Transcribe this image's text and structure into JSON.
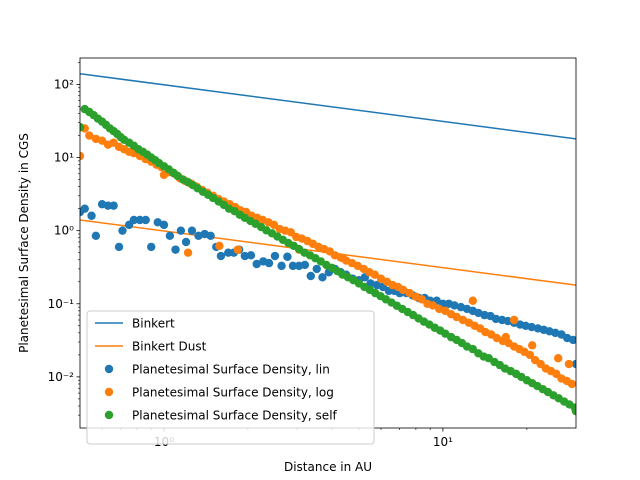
{
  "chart_data": {
    "type": "scatter",
    "title": "",
    "xlabel": "Distance in AU",
    "ylabel": "Planetesimal Surface Density in CGS",
    "xscale": "log",
    "yscale": "log",
    "xlim": [
      0.5,
      30
    ],
    "ylim": [
      0.002,
      230
    ],
    "grid": false,
    "legend_position": "lower-left",
    "x_ticks": [
      {
        "value": 1,
        "label": "10⁰"
      },
      {
        "value": 10,
        "label": "10¹"
      }
    ],
    "y_ticks": [
      {
        "value": 0.01,
        "label": "10⁻²"
      },
      {
        "value": 0.1,
        "label": "10⁻¹"
      },
      {
        "value": 1,
        "label": "10⁰"
      },
      {
        "value": 10,
        "label": "10¹"
      },
      {
        "value": 100,
        "label": "10²"
      }
    ],
    "series": [
      {
        "name": "Binkert",
        "kind": "line",
        "color": "#1f77b4",
        "points": [
          [
            0.5,
            140
          ],
          [
            30,
            18
          ]
        ]
      },
      {
        "name": "Binkert Dust",
        "kind": "line",
        "color": "#ff7f0e",
        "points": [
          [
            0.5,
            1.4
          ],
          [
            30,
            0.18
          ]
        ]
      },
      {
        "name": "Planetesimal Surface Density, lin",
        "kind": "scatter",
        "color": "#1f77b4",
        "points": [
          [
            0.5,
            1.8
          ],
          [
            0.52,
            2.0
          ],
          [
            0.55,
            1.6
          ],
          [
            0.57,
            0.85
          ],
          [
            0.6,
            2.3
          ],
          [
            0.63,
            2.2
          ],
          [
            0.66,
            2.2
          ],
          [
            0.69,
            0.6
          ],
          [
            0.71,
            1.0
          ],
          [
            0.75,
            1.2
          ],
          [
            0.78,
            1.4
          ],
          [
            0.82,
            1.4
          ],
          [
            0.86,
            1.4
          ],
          [
            0.9,
            0.6
          ],
          [
            0.95,
            1.3
          ],
          [
            1.0,
            1.2
          ],
          [
            1.05,
            0.85
          ],
          [
            1.1,
            0.55
          ],
          [
            1.15,
            1.0
          ],
          [
            1.2,
            0.7
          ],
          [
            1.26,
            1.0
          ],
          [
            1.33,
            0.85
          ],
          [
            1.4,
            0.9
          ],
          [
            1.47,
            0.85
          ],
          [
            1.54,
            0.6
          ],
          [
            1.6,
            0.45
          ],
          [
            1.7,
            0.5
          ],
          [
            1.78,
            0.5
          ],
          [
            1.86,
            0.55
          ],
          [
            1.95,
            0.45
          ],
          [
            2.05,
            0.46
          ],
          [
            2.15,
            0.35
          ],
          [
            2.27,
            0.38
          ],
          [
            2.38,
            0.36
          ],
          [
            2.5,
            0.45
          ],
          [
            2.64,
            0.33
          ],
          [
            2.77,
            0.44
          ],
          [
            2.9,
            0.33
          ],
          [
            3.05,
            0.33
          ],
          [
            3.2,
            0.34
          ],
          [
            3.36,
            0.24
          ],
          [
            3.53,
            0.3
          ],
          [
            3.7,
            0.23
          ],
          [
            3.9,
            0.27
          ],
          [
            4.1,
            0.3
          ],
          [
            4.3,
            0.27
          ],
          [
            4.5,
            0.25
          ],
          [
            4.75,
            0.22
          ],
          [
            5.0,
            0.21
          ],
          [
            5.25,
            0.23
          ],
          [
            5.5,
            0.19
          ],
          [
            5.8,
            0.18
          ],
          [
            6.1,
            0.17
          ],
          [
            6.4,
            0.15
          ],
          [
            6.7,
            0.15
          ],
          [
            7.0,
            0.14
          ],
          [
            7.4,
            0.14
          ],
          [
            7.8,
            0.13
          ],
          [
            8.2,
            0.12
          ],
          [
            8.6,
            0.12
          ],
          [
            9.0,
            0.11
          ],
          [
            9.5,
            0.11
          ],
          [
            10.0,
            0.1
          ],
          [
            10.5,
            0.1
          ],
          [
            11.0,
            0.095
          ],
          [
            11.6,
            0.09
          ],
          [
            12.2,
            0.085
          ],
          [
            12.8,
            0.08
          ],
          [
            13.4,
            0.075
          ],
          [
            14.1,
            0.07
          ],
          [
            14.8,
            0.068
          ],
          [
            15.5,
            0.062
          ],
          [
            16.3,
            0.06
          ],
          [
            17.1,
            0.058
          ],
          [
            18.0,
            0.055
          ],
          [
            18.9,
            0.052
          ],
          [
            19.8,
            0.05
          ],
          [
            20.8,
            0.048
          ],
          [
            21.9,
            0.046
          ],
          [
            23.0,
            0.044
          ],
          [
            24.1,
            0.042
          ],
          [
            25.3,
            0.04
          ],
          [
            26.6,
            0.038
          ],
          [
            27.9,
            0.034
          ],
          [
            29.3,
            0.032
          ],
          [
            30.0,
            0.015
          ]
        ]
      },
      {
        "name": "Planetesimal Surface Density, log",
        "kind": "scatter",
        "color": "#ff7f0e",
        "points": [
          [
            0.5,
            10.5
          ],
          [
            0.52,
            25
          ],
          [
            0.54,
            20
          ],
          [
            0.57,
            18
          ],
          [
            0.6,
            17
          ],
          [
            0.63,
            15
          ],
          [
            0.66,
            16
          ],
          [
            0.69,
            14
          ],
          [
            0.72,
            13
          ],
          [
            0.75,
            12
          ],
          [
            0.78,
            11.5
          ],
          [
            0.82,
            10.5
          ],
          [
            0.86,
            9.5
          ],
          [
            0.9,
            8.8
          ],
          [
            0.94,
            8.0
          ],
          [
            0.98,
            7.4
          ],
          [
            1.0,
            5.8
          ],
          [
            1.04,
            6.3
          ],
          [
            1.09,
            6.0
          ],
          [
            1.14,
            5.2
          ],
          [
            1.19,
            4.8
          ],
          [
            1.25,
            4.4
          ],
          [
            1.31,
            4.0
          ],
          [
            1.37,
            3.6
          ],
          [
            1.43,
            3.3
          ],
          [
            1.5,
            3.0
          ],
          [
            1.57,
            2.7
          ],
          [
            1.64,
            2.5
          ],
          [
            1.72,
            2.3
          ],
          [
            1.8,
            2.1
          ],
          [
            1.88,
            1.9
          ],
          [
            1.97,
            1.8
          ],
          [
            2.06,
            1.6
          ],
          [
            2.16,
            1.5
          ],
          [
            2.26,
            1.4
          ],
          [
            2.37,
            1.3
          ],
          [
            2.48,
            1.2
          ],
          [
            2.6,
            1.05
          ],
          [
            2.72,
            1.0
          ],
          [
            2.85,
            0.95
          ],
          [
            2.98,
            0.82
          ],
          [
            3.12,
            0.78
          ],
          [
            3.27,
            0.72
          ],
          [
            3.42,
            0.66
          ],
          [
            3.58,
            0.6
          ],
          [
            3.75,
            0.56
          ],
          [
            3.93,
            0.52
          ],
          [
            4.1,
            0.46
          ],
          [
            4.3,
            0.43
          ],
          [
            4.5,
            0.39
          ],
          [
            4.72,
            0.36
          ],
          [
            4.95,
            0.33
          ],
          [
            5.2,
            0.3
          ],
          [
            5.45,
            0.27
          ],
          [
            5.7,
            0.25
          ],
          [
            6.0,
            0.22
          ],
          [
            6.3,
            0.2
          ],
          [
            6.6,
            0.18
          ],
          [
            6.9,
            0.17
          ],
          [
            7.2,
            0.155
          ],
          [
            7.6,
            0.14
          ],
          [
            8.0,
            0.125
          ],
          [
            8.4,
            0.115
          ],
          [
            8.8,
            0.1
          ],
          [
            9.2,
            0.095
          ],
          [
            9.7,
            0.085
          ],
          [
            10.2,
            0.08
          ],
          [
            10.7,
            0.072
          ],
          [
            11.2,
            0.066
          ],
          [
            11.8,
            0.06
          ],
          [
            12.4,
            0.055
          ],
          [
            13.0,
            0.05
          ],
          [
            13.6,
            0.046
          ],
          [
            14.2,
            0.041
          ],
          [
            14.9,
            0.038
          ],
          [
            15.6,
            0.034
          ],
          [
            16.4,
            0.031
          ],
          [
            17.2,
            0.029
          ],
          [
            18.0,
            0.026
          ],
          [
            18.8,
            0.024
          ],
          [
            19.6,
            0.022
          ],
          [
            20.5,
            0.02
          ],
          [
            21.4,
            0.017
          ],
          [
            22.4,
            0.015
          ],
          [
            23.4,
            0.013
          ],
          [
            24.4,
            0.012
          ],
          [
            25.5,
            0.011
          ],
          [
            26.6,
            0.0095
          ],
          [
            27.8,
            0.0088
          ],
          [
            29.0,
            0.008
          ],
          [
            30.0,
            0.0034
          ],
          [
            1.22,
            0.5
          ],
          [
            1.58,
            0.62
          ],
          [
            1.84,
            0.55
          ],
          [
            3.05,
            0.55
          ],
          [
            4.38,
            0.42
          ],
          [
            12.8,
            0.11
          ],
          [
            18.0,
            0.06
          ],
          [
            16.8,
            0.035
          ],
          [
            20.9,
            0.027
          ],
          [
            25.9,
            0.018
          ],
          [
            28.3,
            0.015
          ]
        ]
      },
      {
        "name": "Planetesimal Surface Density, self",
        "kind": "scatter",
        "color": "#2ca02c",
        "points": [
          [
            0.5,
            26
          ],
          [
            0.52,
            46
          ],
          [
            0.54,
            42
          ],
          [
            0.56,
            38
          ],
          [
            0.58,
            34
          ],
          [
            0.6,
            31
          ],
          [
            0.62,
            28
          ],
          [
            0.64,
            25
          ],
          [
            0.66,
            23
          ],
          [
            0.68,
            21
          ],
          [
            0.7,
            19
          ],
          [
            0.72,
            17.5
          ],
          [
            0.75,
            16
          ],
          [
            0.78,
            14.5
          ],
          [
            0.81,
            13
          ],
          [
            0.84,
            12
          ],
          [
            0.87,
            11
          ],
          [
            0.9,
            10
          ],
          [
            0.93,
            9.2
          ],
          [
            0.96,
            8.4
          ],
          [
            1.0,
            7.6
          ],
          [
            1.04,
            6.9
          ],
          [
            1.08,
            6.2
          ],
          [
            1.12,
            5.6
          ],
          [
            1.17,
            5.0
          ],
          [
            1.22,
            4.6
          ],
          [
            1.27,
            4.2
          ],
          [
            1.32,
            3.8
          ],
          [
            1.38,
            3.4
          ],
          [
            1.44,
            3.1
          ],
          [
            1.5,
            2.8
          ],
          [
            1.57,
            2.5
          ],
          [
            1.64,
            2.25
          ],
          [
            1.71,
            2.0
          ],
          [
            1.79,
            1.85
          ],
          [
            1.87,
            1.65
          ],
          [
            1.95,
            1.5
          ],
          [
            2.04,
            1.36
          ],
          [
            2.13,
            1.24
          ],
          [
            2.23,
            1.12
          ],
          [
            2.33,
            1.01
          ],
          [
            2.44,
            0.92
          ],
          [
            2.55,
            0.83
          ],
          [
            2.67,
            0.75
          ],
          [
            2.79,
            0.68
          ],
          [
            2.92,
            0.62
          ],
          [
            3.05,
            0.56
          ],
          [
            3.19,
            0.5
          ],
          [
            3.34,
            0.46
          ],
          [
            3.49,
            0.42
          ],
          [
            3.65,
            0.38
          ],
          [
            3.82,
            0.34
          ],
          [
            4.0,
            0.31
          ],
          [
            4.18,
            0.28
          ],
          [
            4.37,
            0.25
          ],
          [
            4.57,
            0.23
          ],
          [
            4.78,
            0.21
          ],
          [
            5.0,
            0.19
          ],
          [
            5.23,
            0.17
          ],
          [
            5.47,
            0.155
          ],
          [
            5.72,
            0.14
          ],
          [
            5.98,
            0.127
          ],
          [
            6.25,
            0.115
          ],
          [
            6.54,
            0.104
          ],
          [
            6.84,
            0.094
          ],
          [
            7.15,
            0.085
          ],
          [
            7.48,
            0.077
          ],
          [
            7.82,
            0.07
          ],
          [
            8.18,
            0.063
          ],
          [
            8.55,
            0.057
          ],
          [
            8.94,
            0.052
          ],
          [
            9.35,
            0.047
          ],
          [
            9.78,
            0.043
          ],
          [
            10.2,
            0.039
          ],
          [
            10.7,
            0.035
          ],
          [
            11.2,
            0.032
          ],
          [
            11.7,
            0.029
          ],
          [
            12.2,
            0.026
          ],
          [
            12.8,
            0.024
          ],
          [
            13.4,
            0.021
          ],
          [
            14.0,
            0.019
          ],
          [
            14.6,
            0.018
          ],
          [
            15.3,
            0.016
          ],
          [
            16.0,
            0.0145
          ],
          [
            16.7,
            0.013
          ],
          [
            17.5,
            0.012
          ],
          [
            18.3,
            0.011
          ],
          [
            19.1,
            0.01
          ],
          [
            20.0,
            0.009
          ],
          [
            20.9,
            0.0082
          ],
          [
            21.8,
            0.0075
          ],
          [
            22.8,
            0.0068
          ],
          [
            23.8,
            0.0062
          ],
          [
            24.9,
            0.0056
          ],
          [
            26.0,
            0.0051
          ],
          [
            27.2,
            0.0046
          ],
          [
            28.4,
            0.0042
          ],
          [
            29.7,
            0.0038
          ],
          [
            30.0,
            0.0034
          ],
          [
            0.5,
            26
          ]
        ]
      }
    ]
  }
}
